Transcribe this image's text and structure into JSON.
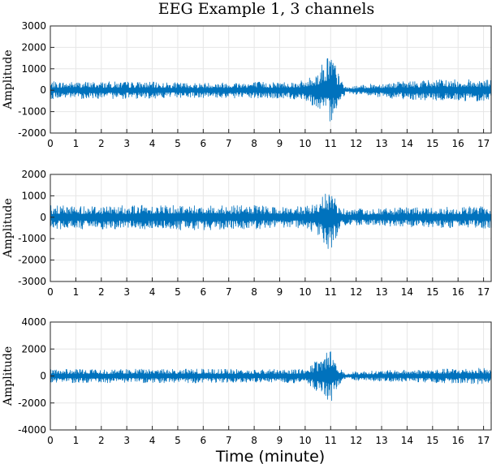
{
  "chart_data": {
    "type": "line",
    "title": "EEG Example 1, 3 channels",
    "xlabel": "Time (minute)",
    "x_range": [
      0,
      17.3
    ],
    "x_ticks": [
      0,
      1,
      2,
      3,
      4,
      5,
      6,
      7,
      8,
      9,
      10,
      11,
      12,
      13,
      14,
      15,
      16,
      17
    ],
    "grid": true,
    "line_color": "#0072bd",
    "panels": [
      {
        "ylabel": "Amplitude",
        "ylim": [
          -2000,
          3000
        ],
        "y_ticks": [
          -2000,
          -1000,
          0,
          1000,
          2000,
          3000
        ],
        "series": [
          {
            "x": [
              0,
              1,
              2,
              3,
              4,
              5,
              6,
              7,
              8,
              9,
              10,
              10.5,
              11,
              11.3,
              11.6,
              12,
              13,
              14,
              15,
              16,
              17,
              17.3
            ],
            "envelope_upper": [
              400,
              400,
              400,
              400,
              380,
              350,
              350,
              380,
              400,
              400,
              450,
              900,
              2000,
              800,
              120,
              200,
              350,
              420,
              500,
              500,
              520,
              500
            ],
            "envelope_lower": [
              -400,
              -400,
              -400,
              -400,
              -380,
              -350,
              -350,
              -380,
              -400,
              -400,
              -450,
              -900,
              -1500,
              -700,
              -120,
              -200,
              -350,
              -420,
              -500,
              -500,
              -520,
              -500
            ]
          }
        ]
      },
      {
        "ylabel": "Amplitude",
        "ylim": [
          -3000,
          2000
        ],
        "y_ticks": [
          -3000,
          -2000,
          -1000,
          0,
          1000,
          2000
        ],
        "series": [
          {
            "x": [
              0,
              1,
              2,
              3,
              4,
              5,
              6,
              7,
              8,
              9,
              10,
              10.5,
              11,
              11.3,
              11.6,
              12,
              13,
              14,
              15,
              16,
              17,
              17.3
            ],
            "envelope_upper": [
              550,
              550,
              550,
              550,
              600,
              600,
              600,
              550,
              550,
              500,
              500,
              700,
              1400,
              600,
              350,
              400,
              420,
              450,
              480,
              500,
              520,
              500
            ],
            "envelope_lower": [
              -550,
              -550,
              -550,
              -550,
              -600,
              -600,
              -600,
              -550,
              -550,
              -500,
              -500,
              -900,
              -1800,
              -700,
              -350,
              -400,
              -420,
              -450,
              -480,
              -500,
              -520,
              -500
            ]
          }
        ]
      },
      {
        "ylabel": "Amplitude",
        "ylim": [
          -4000,
          4000
        ],
        "y_ticks": [
          -4000,
          -2000,
          0,
          2000,
          4000
        ],
        "series": [
          {
            "x": [
              0,
              1,
              2,
              3,
              4,
              5,
              6,
              7,
              8,
              9,
              10,
              10.5,
              11,
              11.3,
              11.6,
              12,
              13,
              14,
              15,
              16,
              17,
              17.3
            ],
            "envelope_upper": [
              500,
              500,
              500,
              500,
              520,
              520,
              520,
              500,
              500,
              500,
              550,
              1200,
              2200,
              800,
              150,
              350,
              400,
              450,
              500,
              550,
              600,
              550
            ],
            "envelope_lower": [
              -500,
              -500,
              -500,
              -500,
              -520,
              -520,
              -520,
              -500,
              -500,
              -500,
              -550,
              -1200,
              -2100,
              -800,
              -150,
              -350,
              -400,
              -450,
              -500,
              -550,
              -600,
              -550
            ]
          }
        ]
      }
    ]
  }
}
